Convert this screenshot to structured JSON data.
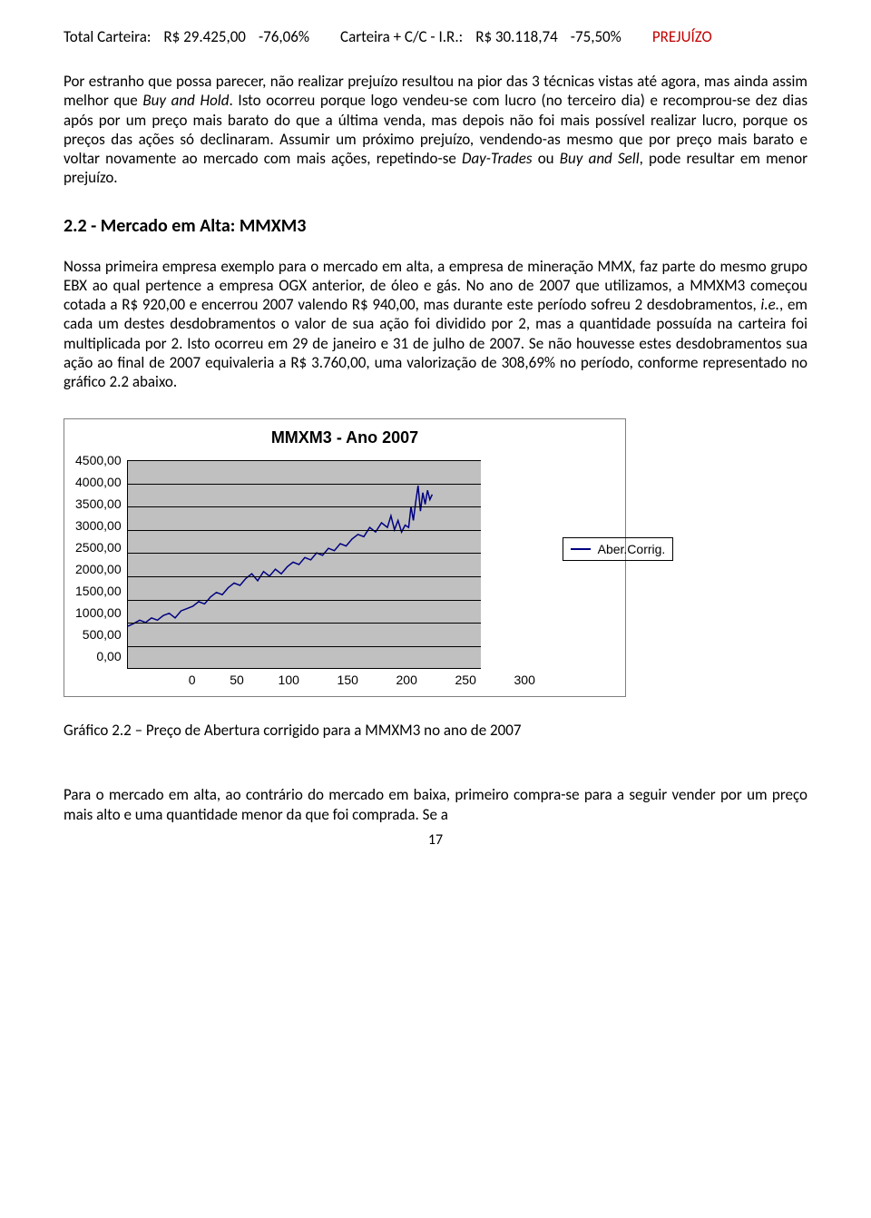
{
  "summary": {
    "label1": "Total Carteira:",
    "value1": "R$ 29.425,00",
    "pct1": "-76,06%",
    "label2": "Carteira + C/C - I.R.:",
    "value2": "R$ 30.118,74",
    "pct2": "-75,50%",
    "status": "PREJUÍZO"
  },
  "paragraph1": "Por estranho que possa parecer, não realizar prejuízo resultou na pior das 3 técnicas vistas até agora, mas ainda assim melhor que Buy and Hold. Isto ocorreu porque logo vendeu-se com lucro (no terceiro dia) e recomprou-se dez dias após por um preço mais barato do que a última venda, mas depois não foi mais possível realizar lucro, porque os preços das ações só declinaram. Assumir um próximo prejuízo, vendendo-as mesmo que por preço mais barato e voltar novamente ao mercado com mais ações, repetindo-se Day-Trades ou Buy and Sell, pode resultar em menor prejuízo.",
  "section_title": "2.2 - Mercado em Alta: MMXM3",
  "paragraph2": "Nossa primeira empresa exemplo para o mercado em alta, a empresa de mineração MMX, faz parte do mesmo grupo EBX ao qual pertence a empresa OGX anterior, de óleo e gás. No ano de 2007 que utilizamos, a MMXM3 começou cotada a R$ 920,00 e encerrou 2007 valendo R$ 940,00, mas durante este período sofreu 2 desdobramentos, i.e., em cada um destes desdobramentos o valor de sua ação foi dividido por 2, mas a quantidade possuída na carteira foi multiplicada por 2. Isto ocorreu em 29 de janeiro e 31 de julho de 2007. Se não houvesse estes desdobramentos sua ação ao final de 2007 equivaleria a R$ 3.760,00, uma valorização de 308,69% no período, conforme representado no gráfico 2.2 abaixo.",
  "chart": {
    "title": "MMXM3 - Ano 2007",
    "type": "line",
    "legend_label": "Aber.Corrig.",
    "line_color": "#000080",
    "background_color": "#c0c0c0",
    "grid_color": "#000000",
    "xlim": [
      0,
      300
    ],
    "ylim": [
      0,
      4500
    ],
    "x_ticks": [
      "0",
      "50",
      "100",
      "150",
      "200",
      "250",
      "300"
    ],
    "y_ticks": [
      "4500,00",
      "4000,00",
      "3500,00",
      "3000,00",
      "2500,00",
      "2000,00",
      "1500,00",
      "1000,00",
      "500,00",
      "0,00"
    ],
    "series": [
      {
        "x": 0,
        "y": 920
      },
      {
        "x": 5,
        "y": 980
      },
      {
        "x": 10,
        "y": 1050
      },
      {
        "x": 15,
        "y": 1000
      },
      {
        "x": 20,
        "y": 1100
      },
      {
        "x": 25,
        "y": 1050
      },
      {
        "x": 30,
        "y": 1150
      },
      {
        "x": 35,
        "y": 1200
      },
      {
        "x": 40,
        "y": 1100
      },
      {
        "x": 45,
        "y": 1250
      },
      {
        "x": 50,
        "y": 1300
      },
      {
        "x": 55,
        "y": 1350
      },
      {
        "x": 60,
        "y": 1450
      },
      {
        "x": 65,
        "y": 1400
      },
      {
        "x": 70,
        "y": 1550
      },
      {
        "x": 75,
        "y": 1650
      },
      {
        "x": 80,
        "y": 1600
      },
      {
        "x": 85,
        "y": 1750
      },
      {
        "x": 90,
        "y": 1850
      },
      {
        "x": 95,
        "y": 1800
      },
      {
        "x": 100,
        "y": 1950
      },
      {
        "x": 105,
        "y": 2050
      },
      {
        "x": 110,
        "y": 1900
      },
      {
        "x": 115,
        "y": 2100
      },
      {
        "x": 120,
        "y": 2000
      },
      {
        "x": 125,
        "y": 2150
      },
      {
        "x": 130,
        "y": 2050
      },
      {
        "x": 135,
        "y": 2200
      },
      {
        "x": 140,
        "y": 2300
      },
      {
        "x": 145,
        "y": 2250
      },
      {
        "x": 150,
        "y": 2400
      },
      {
        "x": 155,
        "y": 2350
      },
      {
        "x": 160,
        "y": 2500
      },
      {
        "x": 165,
        "y": 2450
      },
      {
        "x": 170,
        "y": 2600
      },
      {
        "x": 175,
        "y": 2550
      },
      {
        "x": 180,
        "y": 2700
      },
      {
        "x": 185,
        "y": 2650
      },
      {
        "x": 190,
        "y": 2800
      },
      {
        "x": 195,
        "y": 2900
      },
      {
        "x": 200,
        "y": 2850
      },
      {
        "x": 205,
        "y": 3050
      },
      {
        "x": 210,
        "y": 2950
      },
      {
        "x": 215,
        "y": 3150
      },
      {
        "x": 220,
        "y": 3050
      },
      {
        "x": 223,
        "y": 3300
      },
      {
        "x": 226,
        "y": 3000
      },
      {
        "x": 229,
        "y": 3200
      },
      {
        "x": 232,
        "y": 2950
      },
      {
        "x": 235,
        "y": 3100
      },
      {
        "x": 238,
        "y": 3050
      },
      {
        "x": 240,
        "y": 3500
      },
      {
        "x": 242,
        "y": 3200
      },
      {
        "x": 244,
        "y": 3600
      },
      {
        "x": 246,
        "y": 3950
      },
      {
        "x": 248,
        "y": 3400
      },
      {
        "x": 250,
        "y": 3800
      },
      {
        "x": 252,
        "y": 3550
      },
      {
        "x": 254,
        "y": 3850
      },
      {
        "x": 256,
        "y": 3650
      },
      {
        "x": 258,
        "y": 3760
      }
    ]
  },
  "caption": "Gráfico 2.2 – Preço de Abertura corrigido para a MMXM3 no ano de 2007",
  "paragraph3": "Para o mercado em alta, ao contrário do mercado em baixa, primeiro compra-se para a seguir vender por um preço mais alto e uma quantidade menor da que foi comprada. Se a",
  "page_number": "17"
}
